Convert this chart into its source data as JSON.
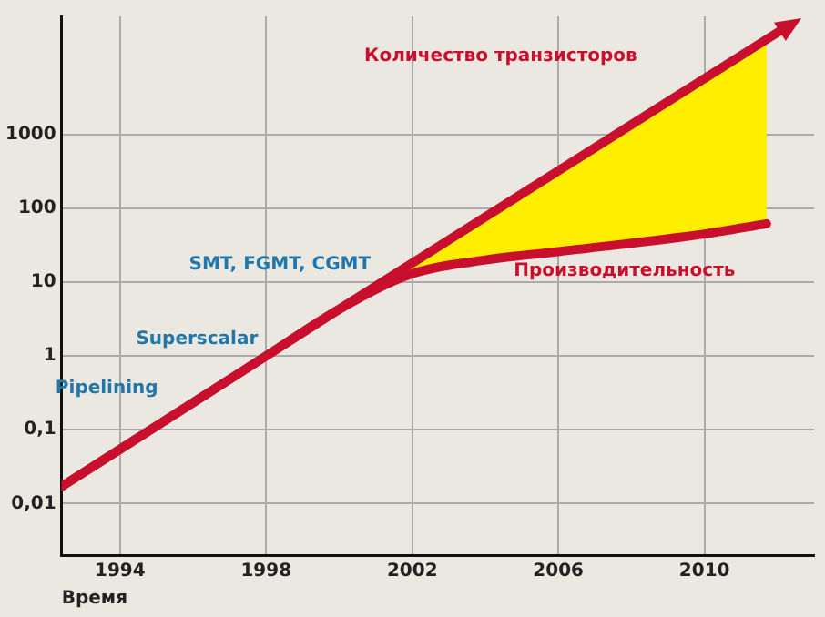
{
  "chart_data": {
    "type": "line",
    "xlabel": "Время",
    "log": "y",
    "grid": true,
    "legend": false,
    "marker": "none",
    "line_style": "solid",
    "xlim": [
      1992.4,
      2013
    ],
    "ylim": [
      0.002,
      40000
    ],
    "xticks": [
      1994,
      1998,
      2002,
      2006,
      2010
    ],
    "yticks": [
      {
        "value": 0.01,
        "label": "0,01"
      },
      {
        "value": 0.1,
        "label": "0,1"
      },
      1,
      10,
      100,
      1000
    ],
    "series": [
      {
        "name": "Количество транзисторов",
        "color": "#c8102e",
        "x": [
          1992.4,
          1998,
          2000,
          2012.3
        ],
        "values": [
          0.017,
          1,
          4.3,
          30000
        ]
      },
      {
        "name": "Производительность",
        "color": "#c8102e",
        "x": [
          1992.4,
          1998,
          2000,
          2002,
          2004,
          2006,
          2010,
          2011.7
        ],
        "values": [
          0.017,
          1,
          4.3,
          13,
          20,
          26,
          45,
          62
        ]
      }
    ],
    "annotations": [
      "Pipelining",
      "Superscalar",
      "SMT, FGMT, CGMT"
    ]
  }
}
